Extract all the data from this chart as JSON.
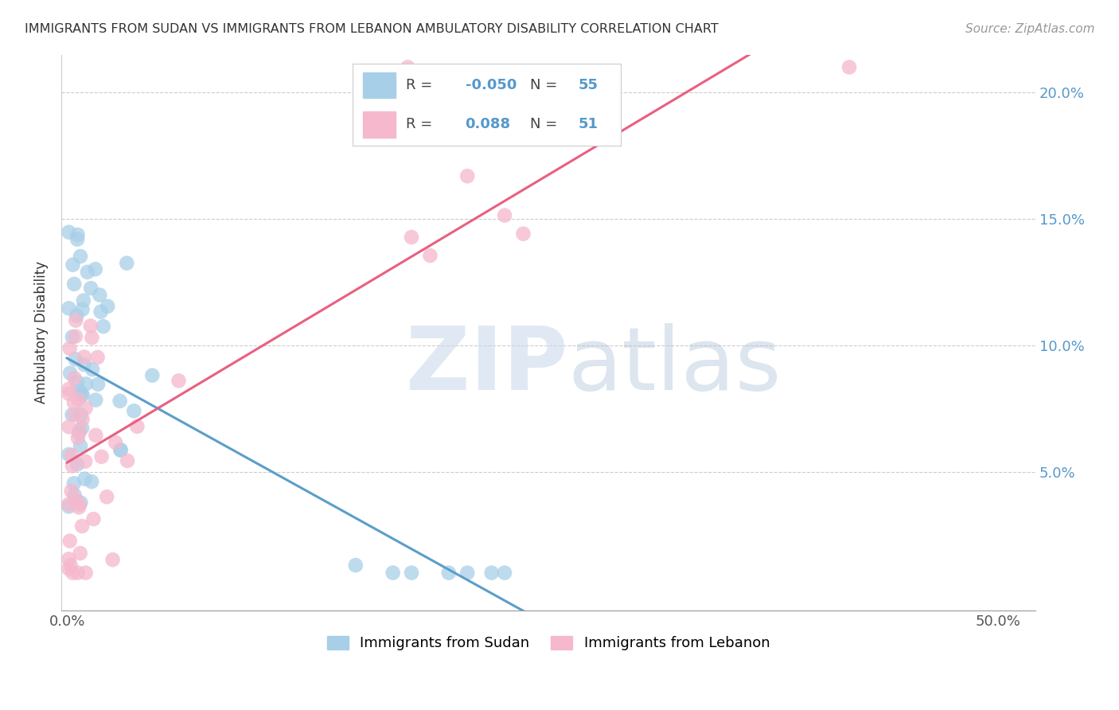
{
  "title": "IMMIGRANTS FROM SUDAN VS IMMIGRANTS FROM LEBANON AMBULATORY DISABILITY CORRELATION CHART",
  "source": "Source: ZipAtlas.com",
  "ylabel": "Ambulatory Disability",
  "sudan_color": "#a8cfe8",
  "lebanon_color": "#f5b8cc",
  "sudan_line_solid_color": "#5b9ec9",
  "lebanon_line_color": "#e86080",
  "background_color": "#ffffff",
  "sudan_R": -0.05,
  "sudan_N": 55,
  "lebanon_R": 0.088,
  "lebanon_N": 51,
  "xlim_min": 0.0,
  "xlim_max": 0.52,
  "ylim_min": -0.005,
  "ylim_max": 0.215,
  "xtick_positions": [
    0.0,
    0.1,
    0.2,
    0.3,
    0.4,
    0.5
  ],
  "xtick_labels": [
    "0.0%",
    "",
    "",
    "",
    "",
    "50.0%"
  ],
  "ytick_positions": [
    0.05,
    0.1,
    0.15,
    0.2
  ],
  "ytick_labels": [
    "5.0%",
    "10.0%",
    "15.0%",
    "20.0%"
  ]
}
